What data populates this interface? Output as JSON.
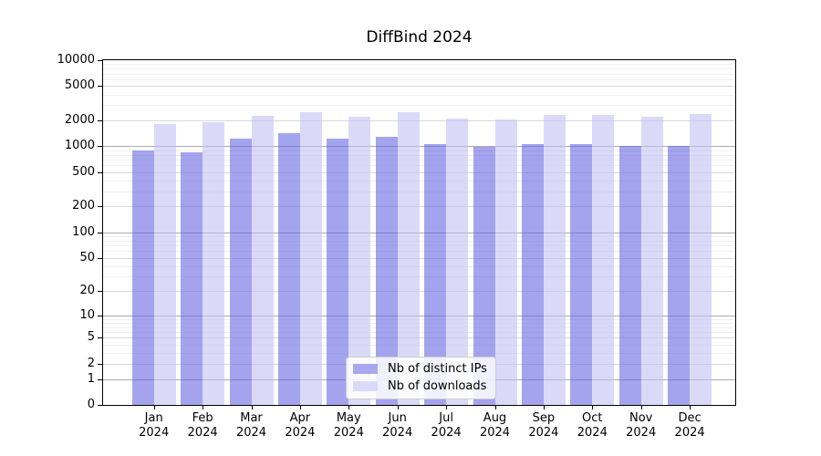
{
  "chart_data": {
    "type": "bar",
    "title": "DiffBind 2024",
    "categories": [
      "Jan",
      "Feb",
      "Mar",
      "Apr",
      "May",
      "Jun",
      "Jul",
      "Aug",
      "Sep",
      "Oct",
      "Nov",
      "Dec"
    ],
    "x_tick_year_line": "2024",
    "series": [
      {
        "name": "Nb of distinct IPs",
        "values": [
          890,
          850,
          1240,
          1430,
          1220,
          1290,
          1070,
          980,
          1070,
          1060,
          1020,
          1020
        ],
        "bar_color": "rgba(103,103,227,0.6)",
        "legend_swatch_color": "#a8a8ee"
      },
      {
        "name": "Nb of downloads",
        "values": [
          1800,
          1890,
          2250,
          2500,
          2210,
          2520,
          2110,
          2060,
          2340,
          2310,
          2230,
          2370
        ],
        "bar_color": "rgba(193,193,244,0.6)",
        "legend_swatch_color": "#dadaf8"
      }
    ],
    "y_axis": {
      "scale": "log1p",
      "min": 0,
      "max": 10000,
      "tick_values": [
        0,
        1,
        2,
        5,
        10,
        20,
        50,
        100,
        200,
        500,
        1000,
        2000,
        5000,
        10000
      ]
    },
    "legend": {
      "position": "lower-center"
    },
    "grid": {
      "decade_line_color": "#ababab",
      "major_line_color": "#d9d9d9",
      "minor_line_color": "#f0f0f0"
    }
  }
}
